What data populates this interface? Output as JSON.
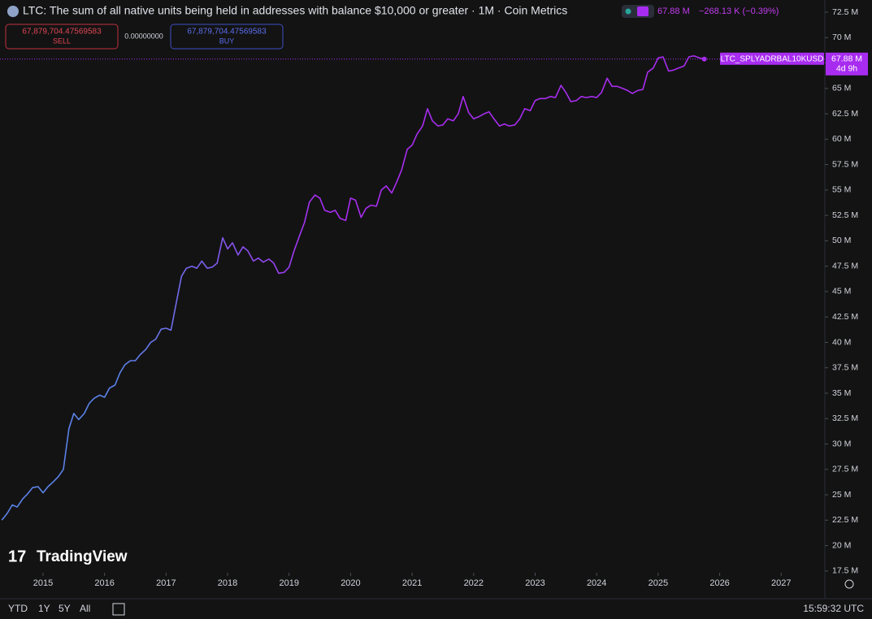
{
  "chart_data": {
    "type": "line",
    "title": "LTC: The sum of all native units being held in addresses with balance $10,000 or greater · 1M · Coin Metrics",
    "x": [
      2014.33,
      2014.42,
      2014.5,
      2014.58,
      2014.67,
      2014.75,
      2014.83,
      2014.92,
      2015,
      2015.08,
      2015.17,
      2015.25,
      2015.33,
      2015.42,
      2015.5,
      2015.58,
      2015.67,
      2015.75,
      2015.83,
      2015.92,
      2016,
      2016.08,
      2016.17,
      2016.25,
      2016.33,
      2016.42,
      2016.5,
      2016.58,
      2016.67,
      2016.75,
      2016.83,
      2016.92,
      2017,
      2017.08,
      2017.17,
      2017.25,
      2017.33,
      2017.42,
      2017.5,
      2017.58,
      2017.67,
      2017.75,
      2017.83,
      2017.92,
      2018,
      2018.08,
      2018.17,
      2018.25,
      2018.33,
      2018.42,
      2018.5,
      2018.58,
      2018.67,
      2018.75,
      2018.83,
      2018.92,
      2019,
      2019.08,
      2019.17,
      2019.25,
      2019.33,
      2019.42,
      2019.5,
      2019.58,
      2019.67,
      2019.75,
      2019.83,
      2019.92,
      2020,
      2020.08,
      2020.17,
      2020.25,
      2020.33,
      2020.42,
      2020.5,
      2020.58,
      2020.67,
      2020.75,
      2020.83,
      2020.92,
      2021,
      2021.08,
      2021.17,
      2021.25,
      2021.33,
      2021.42,
      2021.5,
      2021.58,
      2021.67,
      2021.75,
      2021.83,
      2021.92,
      2022,
      2022.08,
      2022.17,
      2022.25,
      2022.33,
      2022.42,
      2022.5,
      2022.58,
      2022.67,
      2022.75,
      2022.83,
      2022.92,
      2023,
      2023.08,
      2023.17,
      2023.25,
      2023.33,
      2023.42,
      2023.5,
      2023.58,
      2023.67,
      2023.75,
      2023.83,
      2023.92,
      2024,
      2024.08,
      2024.17,
      2024.25,
      2024.33,
      2024.42,
      2024.5,
      2024.58,
      2024.67,
      2024.75,
      2024.83,
      2024.92,
      2025,
      2025.08,
      2025.17,
      2025.25,
      2025.33,
      2025.42,
      2025.5,
      2025.58,
      2025.67,
      2025.75
    ],
    "series": [
      {
        "name": "LTC_SPLYADRBAL10KUSD",
        "color": "#a82cf0",
        "gradient_from": "#5b82e8",
        "values": [
          22.5,
          23.2,
          24.0,
          23.8,
          24.6,
          25.1,
          25.7,
          25.8,
          25.2,
          25.8,
          26.3,
          26.8,
          27.5,
          31.5,
          33.0,
          32.4,
          33.0,
          34.0,
          34.5,
          34.8,
          34.6,
          35.5,
          35.8,
          37.0,
          37.8,
          38.2,
          38.2,
          38.8,
          39.3,
          40.0,
          40.3,
          41.3,
          41.4,
          41.2,
          44.0,
          46.5,
          47.3,
          47.5,
          47.3,
          48.0,
          47.3,
          47.4,
          47.8,
          50.3,
          49.2,
          49.8,
          48.6,
          49.4,
          49.0,
          48.0,
          48.3,
          47.9,
          48.2,
          47.8,
          46.8,
          46.9,
          47.4,
          49.0,
          50.5,
          51.8,
          53.8,
          54.5,
          54.2,
          53.0,
          52.8,
          53.0,
          52.2,
          52.0,
          54.2,
          54.0,
          52.3,
          53.2,
          53.5,
          53.4,
          55.0,
          55.4,
          54.7,
          55.8,
          57.0,
          59.0,
          59.4,
          60.5,
          61.3,
          63.0,
          61.8,
          61.3,
          61.4,
          62.0,
          61.8,
          62.5,
          64.2,
          62.6,
          62.0,
          62.2,
          62.5,
          62.7,
          62.0,
          61.3,
          61.5,
          61.3,
          61.4,
          62.0,
          63.0,
          62.8,
          63.8,
          64.0,
          64.0,
          64.2,
          64.1,
          65.3,
          64.6,
          63.7,
          63.8,
          64.2,
          64.1,
          64.2,
          64.1,
          64.6,
          66.0,
          65.2,
          65.2,
          65.0,
          64.8,
          64.5,
          64.8,
          64.9,
          66.6,
          67.0,
          68.0,
          68.1,
          66.7,
          66.8,
          67.0,
          67.2,
          68.1,
          68.2,
          68.0,
          67.88
        ]
      }
    ],
    "xlim": [
      2014.3,
      2027.71
    ],
    "xticks": [
      2015,
      2016,
      2017,
      2018,
      2019,
      2020,
      2021,
      2022,
      2023,
      2024,
      2025,
      2026,
      2027
    ],
    "ylim": [
      17.33,
      73.7
    ],
    "yticks": [
      {
        "value": 17.5,
        "label": "17.5 M"
      },
      {
        "value": 20,
        "label": "20 M"
      },
      {
        "value": 22.5,
        "label": "22.5 M"
      },
      {
        "value": 25,
        "label": "25 M"
      },
      {
        "value": 27.5,
        "label": "27.5 M"
      },
      {
        "value": 30,
        "label": "30 M"
      },
      {
        "value": 32.5,
        "label": "32.5 M"
      },
      {
        "value": 35,
        "label": "35 M"
      },
      {
        "value": 37.5,
        "label": "37.5 M"
      },
      {
        "value": 40,
        "label": "40 M"
      },
      {
        "value": 42.5,
        "label": "42.5 M"
      },
      {
        "value": 45,
        "label": "45 M"
      },
      {
        "value": 47.5,
        "label": "47.5 M"
      },
      {
        "value": 50,
        "label": "50 M"
      },
      {
        "value": 52.5,
        "label": "52.5 M"
      },
      {
        "value": 55,
        "label": "55 M"
      },
      {
        "value": 57.5,
        "label": "57.5 M"
      },
      {
        "value": 60,
        "label": "60 M"
      },
      {
        "value": 62.5,
        "label": "62.5 M"
      },
      {
        "value": 65,
        "label": "65 M"
      },
      {
        "value": 67.5,
        "label": "67.5 M"
      },
      {
        "value": 70,
        "label": "70 M"
      },
      {
        "value": 72.5,
        "label": "72.5 M"
      }
    ],
    "last_value_label": "67.88 M",
    "change_label": "−268.13 K (−0.39%)",
    "countdown": "4d 9h"
  },
  "toolbar": {
    "sell_price": "67,879,704.47569583",
    "sell": "SELL",
    "spread": "0.00000000",
    "buy_price": "67,879,704.47569583",
    "buy": "BUY",
    "ranges": [
      "YTD",
      "1Y",
      "5Y",
      "All"
    ],
    "clock": "15:59:32 UTC",
    "watermark": "TradingView"
  }
}
